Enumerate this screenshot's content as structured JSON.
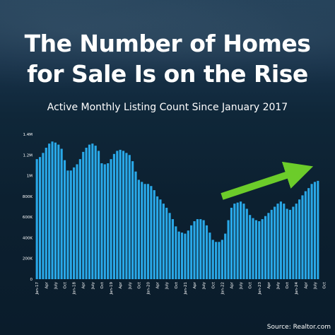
{
  "header": {
    "title_line1": "The Number of Homes",
    "title_line2": "for Sale Is on the Rise",
    "subtitle": "Active Monthly Listing Count Since January 2017"
  },
  "footer": {
    "source": "Source: Realtor.com"
  },
  "colors": {
    "bar": "#29a8e8",
    "arrow": "#6ccc2a",
    "axis_text": "#ffffff"
  },
  "chart_data": {
    "type": "bar",
    "title": "Active Monthly Listing Count Since January 2017",
    "ylim": [
      0,
      1400000
    ],
    "yticks": [
      {
        "value": 0,
        "label": "0"
      },
      {
        "value": 200000,
        "label": "200K"
      },
      {
        "value": 400000,
        "label": "400K"
      },
      {
        "value": 600000,
        "label": "600K"
      },
      {
        "value": 800000,
        "label": "800K"
      },
      {
        "value": 1000000,
        "label": "1M"
      },
      {
        "value": 1200000,
        "label": "1.2M"
      },
      {
        "value": 1400000,
        "label": "1.4M"
      }
    ],
    "xtick_labels": [
      "Jan-17",
      "Apr",
      "July",
      "Oct",
      "Jan-18",
      "Apr",
      "July",
      "Oct",
      "Jan-19",
      "Apr",
      "July",
      "Oct",
      "Jan-20",
      "Apr",
      "July",
      "Oct",
      "Jan-21",
      "Apr",
      "July",
      "Oct",
      "Jan-22",
      "Apr",
      "July",
      "Oct",
      "Jan-23",
      "Apr",
      "July",
      "Oct",
      "Jan-24",
      "Apr",
      "July",
      "Oct"
    ],
    "grid": false,
    "annotation": "upward trend arrow",
    "values": [
      1160000,
      1180000,
      1220000,
      1270000,
      1310000,
      1330000,
      1320000,
      1300000,
      1260000,
      1150000,
      1050000,
      1050000,
      1080000,
      1110000,
      1160000,
      1230000,
      1270000,
      1300000,
      1310000,
      1290000,
      1240000,
      1120000,
      1110000,
      1120000,
      1160000,
      1210000,
      1240000,
      1250000,
      1240000,
      1220000,
      1200000,
      1140000,
      1040000,
      960000,
      940000,
      920000,
      920000,
      900000,
      860000,
      800000,
      770000,
      730000,
      690000,
      640000,
      580000,
      510000,
      460000,
      450000,
      440000,
      470000,
      520000,
      560000,
      580000,
      580000,
      570000,
      520000,
      450000,
      380000,
      360000,
      360000,
      380000,
      440000,
      570000,
      690000,
      730000,
      740000,
      750000,
      730000,
      680000,
      620000,
      590000,
      570000,
      560000,
      580000,
      610000,
      640000,
      670000,
      700000,
      730000,
      750000,
      730000,
      680000,
      670000,
      700000,
      730000,
      770000,
      810000,
      850000,
      880000,
      920000,
      940000,
      950000
    ]
  }
}
